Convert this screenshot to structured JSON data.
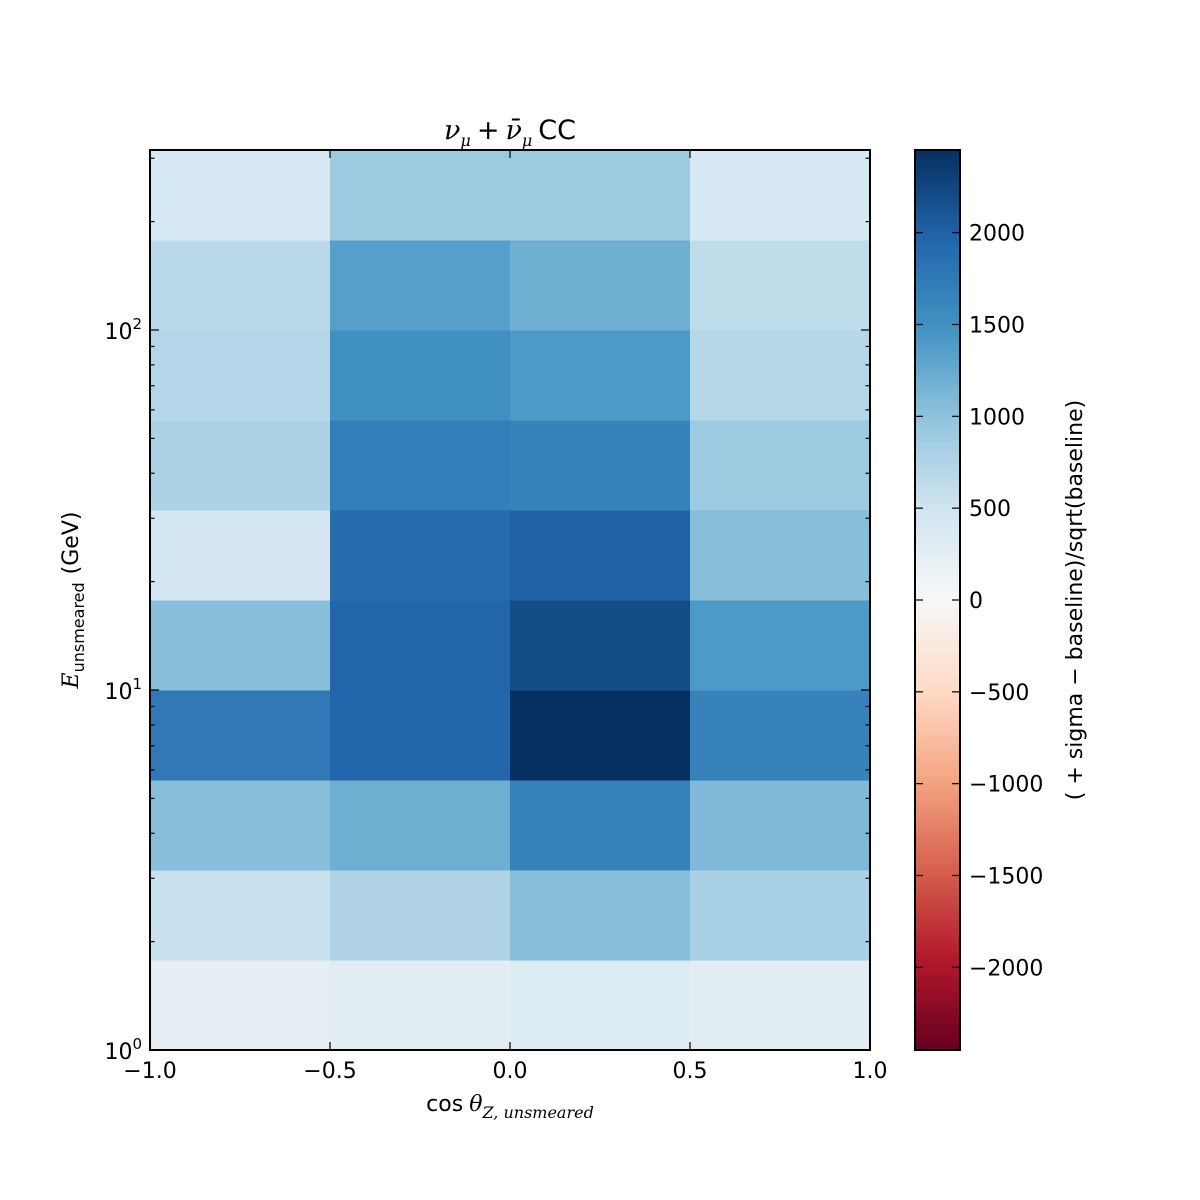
{
  "chart_data": {
    "type": "heatmap",
    "title": {
      "nu": "ν",
      "mu": "μ",
      "plus": "+",
      "nubar": "ν̄",
      "process": "CC"
    },
    "xlabel": {
      "func": "cos",
      "theta": "θ",
      "sub": "Z, unsmeared"
    },
    "ylabel": {
      "symbol": "E",
      "sub": "unsmeared",
      "unit": "(GeV)"
    },
    "colorbar_label": "( + sigma  −  baseline)/sqrt(baseline)",
    "x_edges": [
      -1.0,
      -0.5,
      0.0,
      0.5,
      1.0
    ],
    "y_edges": [
      1.0,
      1.778,
      3.162,
      5.623,
      10.0,
      17.78,
      31.62,
      56.23,
      100.0,
      177.8,
      316.2
    ],
    "y_scale": "log",
    "xlim": [
      -1.0,
      1.0
    ],
    "ylim": [
      1.0,
      316.2
    ],
    "x_ticks": [
      -1.0,
      -0.5,
      0.0,
      0.5,
      1.0
    ],
    "x_tick_labels": [
      "−1.0",
      "−0.5",
      "0.0",
      "0.5",
      "1.0"
    ],
    "y_ticks": [
      {
        "base": "10",
        "exp": "0",
        "value": 1
      },
      {
        "base": "10",
        "exp": "1",
        "value": 10
      },
      {
        "base": "10",
        "exp": "2",
        "value": 100
      }
    ],
    "values": [
      [
        250,
        270,
        330,
        290
      ],
      [
        550,
        750,
        1050,
        800
      ],
      [
        1050,
        1200,
        1650,
        1100
      ],
      [
        1750,
        1950,
        2450,
        1650
      ],
      [
        1050,
        1950,
        2200,
        1400
      ],
      [
        450,
        1900,
        2000,
        1050
      ],
      [
        780,
        1700,
        1650,
        900
      ],
      [
        720,
        1500,
        1400,
        700
      ],
      [
        680,
        1350,
        1200,
        630
      ],
      [
        420,
        900,
        900,
        420
      ]
    ],
    "color_range": [
      -2450,
      2450
    ],
    "colorbar_ticks": [
      2000,
      1500,
      1000,
      500,
      0,
      -500,
      -1000,
      -1500,
      -2000
    ],
    "colorbar_tick_labels": [
      "2000",
      "1500",
      "1000",
      "500",
      "0",
      "−500",
      "−1000",
      "−1500",
      "−2000"
    ],
    "colormap": "RdBu",
    "colormap_stops": [
      "#67001f",
      "#b2182b",
      "#d6604d",
      "#f4a582",
      "#fddbc7",
      "#f7f7f7",
      "#d1e5f0",
      "#92c5de",
      "#4393c3",
      "#2166ac",
      "#053061"
    ]
  }
}
